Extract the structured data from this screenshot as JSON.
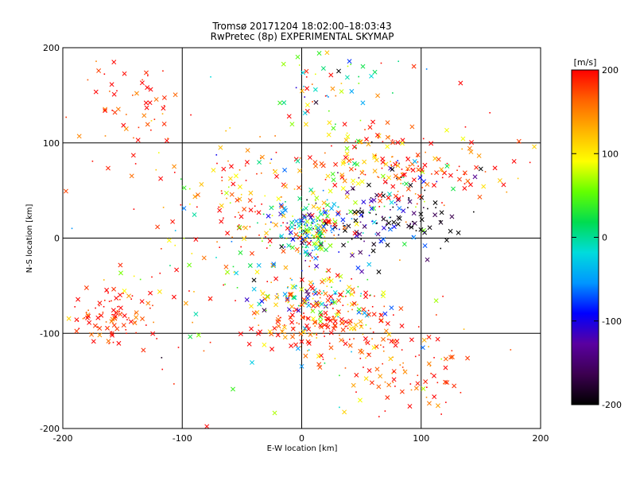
{
  "chart_data": {
    "type": "scatter",
    "title": "Tromsø 20171204 18:02:00–18:03:43",
    "subtitle": "RwPretec (8p) EXPERIMENTAL SKYMAP",
    "xlabel": "E-W location [km]",
    "ylabel": "N-S location [km]",
    "xlim": [
      -200,
      200
    ],
    "ylim": [
      -200,
      200
    ],
    "xticks": [
      "-200",
      "-100",
      "0",
      "100",
      "200"
    ],
    "yticks": [
      "-200",
      "-100",
      "0",
      "100",
      "200"
    ],
    "xtick_values": [
      -200,
      -100,
      0,
      100,
      200
    ],
    "ytick_values": [
      -200,
      -100,
      0,
      100,
      200
    ],
    "grid": true,
    "colorbar": {
      "unit": "[m/s]",
      "range": [
        -200,
        200
      ],
      "tick_labels": [
        "200",
        "100",
        "0",
        "-100",
        "-200"
      ],
      "tick_values": [
        200,
        100,
        0,
        -100,
        -200
      ],
      "colors": [
        "#000000",
        "#3c0050",
        "#5a00a0",
        "#0000ff",
        "#0096ff",
        "#00dcdc",
        "#00dc50",
        "#64ff00",
        "#ffff00",
        "#ffb400",
        "#ff6400",
        "#ff0000"
      ]
    },
    "markers": [
      "x",
      "dot"
    ],
    "clusters": [
      {
        "x": 10,
        "y": 10,
        "sx": 16,
        "sy": 18,
        "n": 200,
        "vmean": -10,
        "vsd": 110
      },
      {
        "x": 15,
        "y": -65,
        "sx": 25,
        "sy": 14,
        "n": 140,
        "vmean": 80,
        "vsd": 110
      },
      {
        "x": 15,
        "y": -90,
        "sx": 30,
        "sy": 15,
        "n": 140,
        "vmean": 180,
        "vsd": 30
      },
      {
        "x": -155,
        "y": -85,
        "sx": 18,
        "sy": 14,
        "n": 100,
        "vmean": 185,
        "vsd": 25
      },
      {
        "x": -140,
        "y": 135,
        "sx": 25,
        "sy": 35,
        "n": 60,
        "vmean": 185,
        "vsd": 25
      },
      {
        "x": -45,
        "y": 45,
        "sx": 28,
        "sy": 30,
        "n": 90,
        "vmean": 170,
        "vsd": 50
      },
      {
        "x": 75,
        "y": 25,
        "sx": 28,
        "sy": 25,
        "n": 140,
        "vmean": -160,
        "vsd": 90
      },
      {
        "x": 60,
        "y": 80,
        "sx": 25,
        "sy": 20,
        "n": 80,
        "vmean": 170,
        "vsd": 60
      },
      {
        "x": 110,
        "y": 70,
        "sx": 35,
        "sy": 20,
        "n": 90,
        "vmean": 180,
        "vsd": 40
      },
      {
        "x": 70,
        "y": -125,
        "sx": 35,
        "sy": 25,
        "n": 90,
        "vmean": 180,
        "vsd": 35
      },
      {
        "x": 20,
        "y": 150,
        "sx": 30,
        "sy": 35,
        "n": 70,
        "vmean": 60,
        "vsd": 120
      },
      {
        "x": -60,
        "y": -40,
        "sx": 45,
        "sy": 40,
        "n": 60,
        "vmean": 120,
        "vsd": 100
      },
      {
        "x": 110,
        "y": -150,
        "sx": 15,
        "sy": 20,
        "n": 25,
        "vmean": 180,
        "vsd": 40
      },
      {
        "x": 0,
        "y": 0,
        "sx": 110,
        "sy": 110,
        "n": 140,
        "vmean": 120,
        "vsd": 120
      }
    ]
  }
}
